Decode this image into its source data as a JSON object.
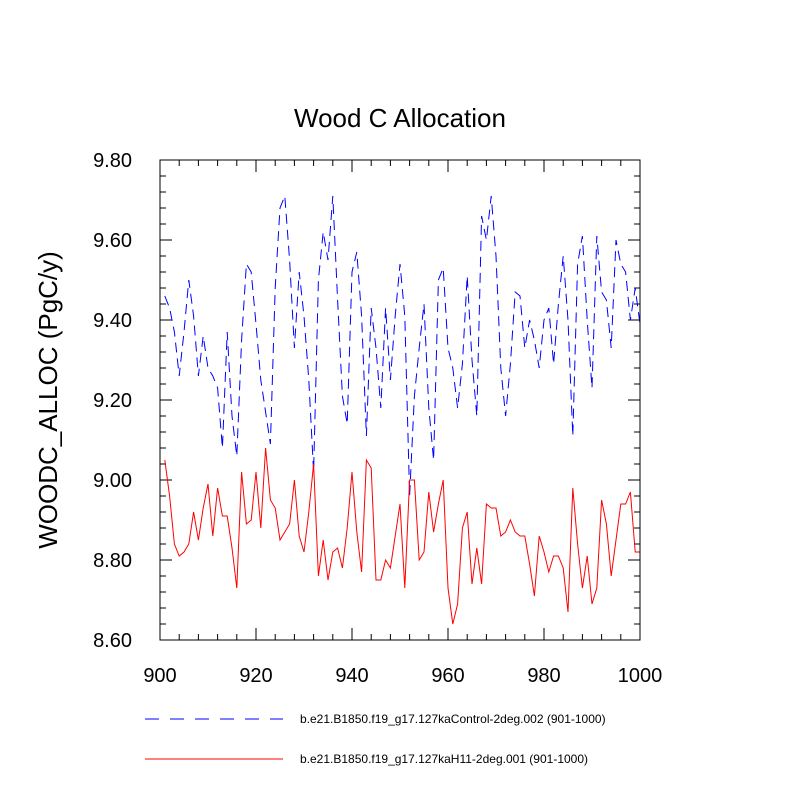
{
  "chart_data": {
    "type": "line",
    "title": "Wood C Allocation",
    "xlabel": "",
    "ylabel": "WOODC_ALLOC  (PgC/y)",
    "xlim": [
      900,
      1000
    ],
    "ylim": [
      8.6,
      9.8
    ],
    "xticks": [
      900,
      920,
      940,
      960,
      980,
      1000
    ],
    "xtick_labels": [
      "900",
      "920",
      "940",
      "960",
      "980",
      "1000"
    ],
    "yticks": [
      8.6,
      8.8,
      9.0,
      9.2,
      9.4,
      9.6,
      9.8
    ],
    "ytick_labels": [
      "8.60",
      "8.80",
      "9.00",
      "9.20",
      "9.40",
      "9.60",
      "9.80"
    ],
    "x_start": 901,
    "x_step": 1,
    "legend_position": "bottom",
    "series": [
      {
        "name": "b.e21.B1850.f19_g17.127kaControl-2deg.002 (901-1000)",
        "color": "#0000ff",
        "style": "dashed",
        "values": [
          9.46,
          9.43,
          9.37,
          9.26,
          9.37,
          9.5,
          9.41,
          9.26,
          9.36,
          9.28,
          9.26,
          9.23,
          9.08,
          9.37,
          9.16,
          9.06,
          9.35,
          9.54,
          9.52,
          9.39,
          9.25,
          9.17,
          9.09,
          9.48,
          9.68,
          9.71,
          9.55,
          9.33,
          9.52,
          9.41,
          9.25,
          9.02,
          9.5,
          9.62,
          9.55,
          9.71,
          9.45,
          9.21,
          9.14,
          9.52,
          9.57,
          9.41,
          9.11,
          9.43,
          9.33,
          9.18,
          9.43,
          9.25,
          9.41,
          9.54,
          9.41,
          8.96,
          9.21,
          9.33,
          9.44,
          9.18,
          9.05,
          9.5,
          9.53,
          9.33,
          9.28,
          9.18,
          9.29,
          9.51,
          9.3,
          9.16,
          9.66,
          9.6,
          9.71,
          9.56,
          9.28,
          9.16,
          9.29,
          9.47,
          9.46,
          9.33,
          9.4,
          9.35,
          9.28,
          9.4,
          9.43,
          9.29,
          9.44,
          9.56,
          9.4,
          9.11,
          9.54,
          9.61,
          9.4,
          9.23,
          9.61,
          9.47,
          9.45,
          9.33,
          9.6,
          9.54,
          9.52,
          9.4,
          9.48,
          9.39
        ]
      },
      {
        "name": "b.e21.B1850.f19_g17.127kaH11-2deg.001 (901-1000)",
        "color": "#ff0000",
        "style": "solid",
        "values": [
          9.05,
          8.96,
          8.84,
          8.81,
          8.82,
          8.84,
          8.92,
          8.85,
          8.93,
          8.99,
          8.86,
          8.98,
          8.91,
          8.91,
          8.83,
          8.73,
          9.02,
          8.89,
          8.9,
          9.02,
          8.88,
          9.08,
          8.95,
          8.93,
          8.85,
          8.87,
          8.89,
          9.0,
          8.86,
          8.82,
          8.92,
          9.04,
          8.76,
          8.85,
          8.75,
          8.82,
          8.83,
          8.78,
          8.88,
          9.02,
          8.87,
          8.77,
          9.05,
          9.03,
          8.75,
          8.75,
          8.8,
          8.78,
          8.86,
          8.94,
          8.73,
          9.0,
          9.0,
          8.8,
          8.82,
          8.97,
          8.87,
          8.94,
          9.0,
          8.73,
          8.64,
          8.69,
          8.88,
          8.92,
          8.74,
          8.83,
          8.74,
          8.94,
          8.93,
          8.93,
          8.86,
          8.87,
          8.9,
          8.87,
          8.86,
          8.86,
          8.79,
          8.71,
          8.86,
          8.82,
          8.77,
          8.81,
          8.81,
          8.78,
          8.67,
          8.98,
          8.84,
          8.73,
          8.81,
          8.69,
          8.73,
          8.95,
          8.89,
          8.76,
          8.85,
          8.94,
          8.94,
          8.97,
          8.82,
          8.82
        ]
      }
    ]
  }
}
